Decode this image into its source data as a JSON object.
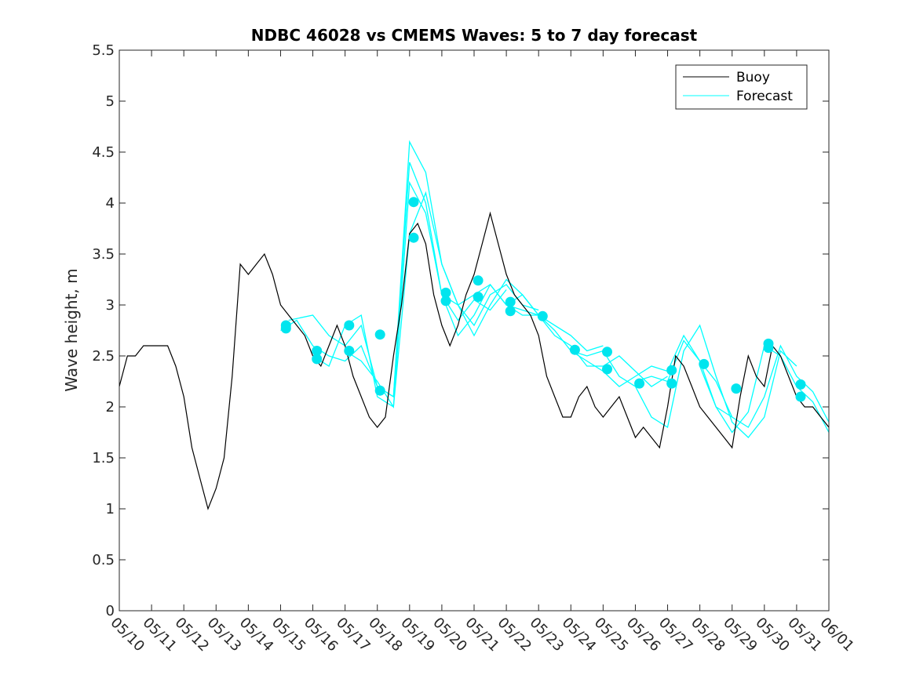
{
  "chart_data": {
    "type": "line",
    "title": "NDBC 46028 vs CMEMS Waves: 5 to 7 day forecast",
    "xlabel": "",
    "ylabel": "Wave height, m",
    "x_unit": "date (MM/DD)",
    "xlim": [
      "05/10",
      "06/01"
    ],
    "ylim": [
      0,
      5.5
    ],
    "yticks": [
      "0",
      "0.5",
      "1",
      "1.5",
      "2",
      "2.5",
      "3",
      "3.5",
      "4",
      "4.5",
      "5",
      "5.5"
    ],
    "xticks": [
      "05/10",
      "05/11",
      "05/12",
      "05/13",
      "05/14",
      "05/15",
      "05/16",
      "05/17",
      "05/18",
      "05/19",
      "05/20",
      "05/21",
      "05/22",
      "05/23",
      "05/24",
      "05/25",
      "05/26",
      "05/27",
      "05/28",
      "05/29",
      "05/30",
      "05/31",
      "06/01"
    ],
    "grid": false,
    "legend_position": "top-right",
    "colors": {
      "buoy": "#000000",
      "forecast": "#00ffff",
      "marker": "#00e5ee"
    },
    "series": [
      {
        "name": "Buoy",
        "style": "line",
        "x": [
          "05/10 00:00",
          "05/10 06:00",
          "05/10 12:00",
          "05/10 18:00",
          "05/11 00:00",
          "05/11 06:00",
          "05/11 12:00",
          "05/11 18:00",
          "05/12 00:00",
          "05/12 06:00",
          "05/12 12:00",
          "05/12 18:00",
          "05/13 00:00",
          "05/13 06:00",
          "05/13 12:00",
          "05/13 18:00",
          "05/14 00:00",
          "05/14 06:00",
          "05/14 12:00",
          "05/14 18:00",
          "05/15 00:00",
          "05/15 06:00",
          "05/15 12:00",
          "05/15 18:00",
          "05/16 00:00",
          "05/16 06:00",
          "05/16 12:00",
          "05/16 18:00",
          "05/17 00:00",
          "05/17 06:00",
          "05/17 12:00",
          "05/17 18:00",
          "05/18 00:00",
          "05/18 06:00",
          "05/18 12:00",
          "05/18 18:00",
          "05/19 00:00",
          "05/19 06:00",
          "05/19 12:00",
          "05/19 18:00",
          "05/20 00:00",
          "05/20 06:00",
          "05/20 12:00",
          "05/20 18:00",
          "05/21 00:00",
          "05/21 06:00",
          "05/21 12:00",
          "05/21 18:00",
          "05/22 00:00",
          "05/22 06:00",
          "05/22 12:00",
          "05/22 18:00",
          "05/23 00:00",
          "05/23 06:00",
          "05/23 12:00",
          "05/23 18:00",
          "05/24 00:00",
          "05/24 06:00",
          "05/24 12:00",
          "05/24 18:00",
          "05/25 00:00",
          "05/25 06:00",
          "05/25 12:00",
          "05/25 18:00",
          "05/26 00:00",
          "05/26 06:00",
          "05/26 12:00",
          "05/26 18:00",
          "05/27 00:00",
          "05/27 06:00",
          "05/27 12:00",
          "05/27 18:00",
          "05/28 00:00",
          "05/28 06:00",
          "05/28 12:00",
          "05/28 18:00",
          "05/29 00:00",
          "05/29 06:00",
          "05/29 12:00",
          "05/29 18:00",
          "05/30 00:00",
          "05/30 06:00",
          "05/30 12:00",
          "05/30 18:00",
          "05/31 00:00",
          "05/31 06:00",
          "05/31 12:00",
          "05/31 18:00",
          "06/01 00:00"
        ],
        "values": [
          2.2,
          2.5,
          2.5,
          2.6,
          2.6,
          2.6,
          2.6,
          2.4,
          2.1,
          1.6,
          1.3,
          1.0,
          1.2,
          1.5,
          2.3,
          3.4,
          3.3,
          3.4,
          3.5,
          3.3,
          3.0,
          2.9,
          2.8,
          2.7,
          2.5,
          2.4,
          2.6,
          2.8,
          2.6,
          2.3,
          2.1,
          1.9,
          1.8,
          1.9,
          2.5,
          3.0,
          3.7,
          3.8,
          3.6,
          3.1,
          2.8,
          2.6,
          2.8,
          3.1,
          3.3,
          3.6,
          3.9,
          3.6,
          3.3,
          3.1,
          3.0,
          2.9,
          2.7,
          2.3,
          2.1,
          1.9,
          1.9,
          2.1,
          2.2,
          2.0,
          1.9,
          2.0,
          2.1,
          1.9,
          1.7,
          1.8,
          1.7,
          1.6,
          2.0,
          2.5,
          2.4,
          2.2,
          2.0,
          1.9,
          1.8,
          1.7,
          1.6,
          2.1,
          2.5,
          2.3,
          2.2,
          2.6,
          2.5,
          2.3,
          2.1,
          2.0,
          2.0,
          1.9,
          1.8
        ]
      },
      {
        "name": "Forecast",
        "style": "line",
        "runs": [
          {
            "x": [
              "05/15 00:00",
              "05/15 12:00",
              "05/16 00:00",
              "05/16 12:00",
              "05/17 00:00",
              "05/17 12:00",
              "05/18 00:00",
              "05/18 12:00",
              "05/19 00:00",
              "05/19 12:00",
              "05/20 00:00",
              "05/20 12:00",
              "05/21 00:00",
              "05/21 12:00",
              "05/22 00:00"
            ],
            "values": [
              2.75,
              2.85,
              2.6,
              2.5,
              2.45,
              2.6,
              2.2,
              2.1,
              4.4,
              4.0,
              3.1,
              2.85,
              3.05,
              2.95,
              3.15
            ]
          },
          {
            "x": [
              "05/15 06:00",
              "05/16 00:00",
              "05/16 12:00",
              "05/17 00:00",
              "05/17 12:00",
              "05/18 00:00",
              "05/18 12:00",
              "05/19 00:00",
              "05/19 12:00",
              "05/20 00:00",
              "05/20 12:00",
              "05/21 00:00",
              "05/21 12:00",
              "05/22 00:00",
              "05/22 12:00",
              "05/23 00:00"
            ],
            "values": [
              2.85,
              2.9,
              2.7,
              2.6,
              2.8,
              2.2,
              2.1,
              4.6,
              4.3,
              3.4,
              3.0,
              2.8,
              3.1,
              3.2,
              3.0,
              2.95
            ]
          },
          {
            "x": [
              "05/16 00:00",
              "05/16 12:00",
              "05/17 00:00",
              "05/17 12:00",
              "05/18 00:00",
              "05/18 12:00",
              "05/19 00:00",
              "05/19 12:00",
              "05/20 00:00",
              "05/20 12:00",
              "05/21 00:00",
              "05/21 12:00",
              "05/22 00:00",
              "05/22 12:00",
              "05/23 00:00",
              "05/23 12:00",
              "05/24 00:00"
            ],
            "values": [
              2.5,
              2.4,
              2.8,
              2.9,
              2.1,
              2.0,
              4.2,
              3.9,
              3.1,
              2.7,
              2.9,
              3.2,
              3.0,
              2.9,
              2.9,
              2.8,
              2.7
            ]
          },
          {
            "x": [
              "05/17 00:00",
              "05/17 12:00",
              "05/18 00:00",
              "05/18 12:00",
              "05/19 00:00",
              "05/19 12:00",
              "05/20 00:00",
              "05/20 12:00",
              "05/21 00:00",
              "05/21 12:00",
              "05/22 00:00",
              "05/22 12:00",
              "05/23 00:00",
              "05/23 12:00",
              "05/24 00:00",
              "05/24 12:00",
              "05/25 00:00"
            ],
            "values": [
              2.55,
              2.45,
              2.25,
              2.0,
              3.7,
              4.1,
              3.4,
              3.0,
              2.7,
              3.0,
              3.25,
              3.1,
              2.9,
              2.8,
              2.7,
              2.55,
              2.6
            ]
          },
          {
            "x": [
              "05/20 00:00",
              "05/20 12:00",
              "05/21 00:00",
              "05/21 12:00",
              "05/22 00:00",
              "05/22 12:00",
              "05/23 00:00",
              "05/23 12:00",
              "05/24 00:00",
              "05/24 12:00",
              "05/25 00:00",
              "05/25 12:00",
              "05/26 00:00",
              "05/26 12:00",
              "05/27 00:00"
            ],
            "values": [
              3.1,
              3.0,
              3.1,
              3.2,
              3.0,
              3.1,
              2.9,
              2.7,
              2.6,
              2.4,
              2.4,
              2.5,
              2.35,
              2.2,
              2.3
            ]
          },
          {
            "x": [
              "05/22 00:00",
              "05/22 12:00",
              "05/23 00:00",
              "05/23 12:00",
              "05/24 00:00",
              "05/24 12:00",
              "05/25 00:00",
              "05/25 12:00",
              "05/26 00:00",
              "05/26 12:00",
              "05/27 00:00",
              "05/27 12:00",
              "05/28 00:00",
              "05/28 12:00",
              "05/29 00:00"
            ],
            "values": [
              3.0,
              2.95,
              2.9,
              2.75,
              2.55,
              2.45,
              2.35,
              2.2,
              2.3,
              2.4,
              2.35,
              2.7,
              2.45,
              2.0,
              1.9
            ]
          },
          {
            "x": [
              "05/24 00:00",
              "05/24 12:00",
              "05/25 00:00",
              "05/25 12:00",
              "05/26 00:00",
              "05/26 12:00",
              "05/27 00:00",
              "05/27 12:00",
              "05/28 00:00",
              "05/28 12:00",
              "05/29 00:00",
              "05/29 12:00",
              "05/30 00:00",
              "05/30 12:00",
              "05/31 00:00"
            ],
            "values": [
              2.55,
              2.5,
              2.55,
              2.3,
              2.2,
              1.9,
              1.8,
              2.55,
              2.8,
              2.3,
              1.85,
              1.7,
              1.9,
              2.55,
              2.4
            ]
          },
          {
            "x": [
              "05/26 00:00",
              "05/26 12:00",
              "05/27 00:00",
              "05/27 12:00",
              "05/28 00:00",
              "05/28 12:00",
              "05/29 00:00",
              "05/29 12:00",
              "05/30 00:00",
              "05/30 12:00",
              "05/31 00:00",
              "05/31 12:00",
              "06/01 00:00"
            ],
            "values": [
              2.25,
              2.3,
              2.25,
              2.65,
              2.45,
              2.25,
              1.9,
              1.8,
              2.1,
              2.6,
              2.3,
              2.15,
              1.85
            ]
          },
          {
            "x": [
              "05/28 00:00",
              "05/28 12:00",
              "05/29 00:00",
              "05/29 12:00",
              "05/30 00:00",
              "05/30 12:00",
              "05/31 00:00",
              "05/31 12:00",
              "06/01 00:00"
            ],
            "values": [
              2.4,
              2.0,
              1.75,
              1.95,
              2.6,
              2.5,
              2.2,
              2.05,
              1.75
            ]
          }
        ]
      }
    ],
    "markers": {
      "x": [
        "05/15 04:00",
        "05/15 04:00",
        "05/16 03:00",
        "05/16 03:00",
        "05/17 03:00",
        "05/17 03:00",
        "05/18 02:00",
        "05/18 02:00",
        "05/19 03:00",
        "05/19 03:00",
        "05/20 03:00",
        "05/20 03:00",
        "05/21 03:00",
        "05/21 03:00",
        "05/22 03:00",
        "05/22 03:00",
        "05/23 03:00",
        "05/24 03:00",
        "05/25 03:00",
        "05/25 03:00",
        "05/26 03:00",
        "05/27 03:00",
        "05/27 03:00",
        "05/28 03:00",
        "05/29 03:00",
        "05/30 03:00",
        "05/30 03:00",
        "05/31 03:00",
        "05/31 03:00"
      ],
      "values": [
        2.8,
        2.77,
        2.55,
        2.47,
        2.8,
        2.55,
        2.71,
        2.16,
        4.01,
        3.66,
        3.12,
        3.04,
        3.24,
        3.08,
        3.03,
        2.94,
        2.89,
        2.56,
        2.54,
        2.37,
        2.23,
        2.36,
        2.23,
        2.42,
        2.18,
        2.62,
        2.58,
        2.22,
        2.1
      ]
    }
  },
  "legend": {
    "buoy_label": "Buoy",
    "forecast_label": "Forecast"
  }
}
